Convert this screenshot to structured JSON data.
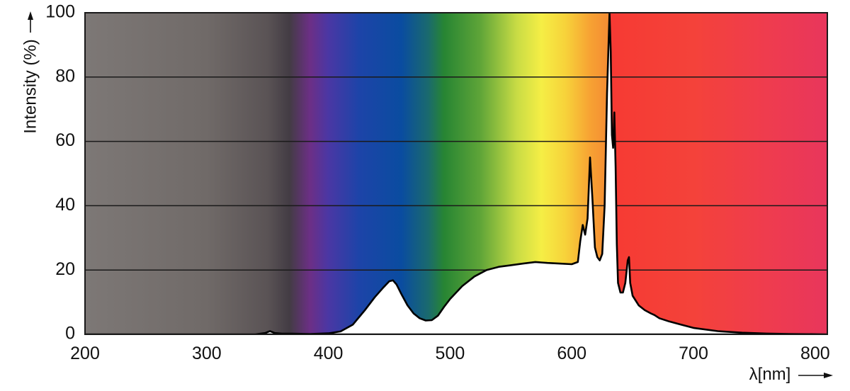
{
  "chart_data": {
    "type": "area",
    "ylabel": "Intensity (%)",
    "xlabel": "λ[nm]",
    "xlim": [
      200,
      810
    ],
    "ylim": [
      0,
      100
    ],
    "xticks": [
      200,
      300,
      400,
      500,
      600,
      700,
      800
    ],
    "yticks": [
      0,
      20,
      40,
      60,
      80,
      100
    ],
    "grid": "horizontal",
    "series": [
      {
        "x": [
          200,
          340,
          348,
          352,
          356,
          362,
          370,
          385,
          400,
          410,
          420,
          430,
          438,
          445,
          450,
          453,
          456,
          460,
          465,
          470,
          475,
          480,
          485,
          490,
          495,
          500,
          510,
          520,
          530,
          540,
          550,
          560,
          570,
          580,
          590,
          600,
          605,
          607,
          609,
          611,
          613,
          615,
          617,
          619,
          621,
          623,
          625,
          627,
          629,
          631,
          632,
          633,
          634,
          635,
          636,
          637,
          638,
          640,
          642,
          644,
          646,
          647,
          648,
          650,
          655,
          660,
          665,
          668,
          672,
          680,
          690,
          700,
          720,
          740,
          760,
          780,
          800,
          810
        ],
        "y": [
          0,
          0,
          0.4,
          1,
          0.4,
          0.2,
          0.2,
          0.1,
          0.3,
          0.9,
          3,
          7.5,
          11.5,
          14.5,
          16.5,
          16.8,
          15.5,
          12.5,
          9,
          6.5,
          5,
          4.3,
          4.4,
          5.8,
          8.5,
          11,
          15,
          18,
          20,
          21,
          21.5,
          22,
          22.5,
          22.2,
          22,
          21.8,
          22.5,
          29,
          34,
          31,
          36,
          55,
          42,
          27,
          24,
          23,
          25,
          40,
          75,
          100,
          88,
          62,
          58,
          69,
          52,
          28,
          16,
          13,
          13,
          16,
          23,
          24,
          16,
          12,
          9,
          7.5,
          6.5,
          6,
          5,
          4,
          3,
          2,
          1,
          0.5,
          0.25,
          0.1,
          0.05,
          0
        ]
      }
    ],
    "background_gradient": [
      {
        "nm": 200,
        "color": "#7d7876"
      },
      {
        "nm": 300,
        "color": "#706a68"
      },
      {
        "nm": 350,
        "color": "#5a5355"
      },
      {
        "nm": 368,
        "color": "#433c44"
      },
      {
        "nm": 385,
        "color": "#6c2f86"
      },
      {
        "nm": 400,
        "color": "#4a37a4"
      },
      {
        "nm": 425,
        "color": "#1d44a8"
      },
      {
        "nm": 460,
        "color": "#0a4ca0"
      },
      {
        "nm": 482,
        "color": "#1a6a6e"
      },
      {
        "nm": 495,
        "color": "#278533"
      },
      {
        "nm": 525,
        "color": "#5fa538"
      },
      {
        "nm": 555,
        "color": "#c9dc45"
      },
      {
        "nm": 575,
        "color": "#f5ee45"
      },
      {
        "nm": 595,
        "color": "#f7d23a"
      },
      {
        "nm": 615,
        "color": "#f7a233"
      },
      {
        "nm": 630,
        "color": "#f48c33"
      },
      {
        "nm": 631,
        "color": "#f63a33"
      },
      {
        "nm": 700,
        "color": "#f4423a"
      },
      {
        "nm": 760,
        "color": "#ef3c4e"
      },
      {
        "nm": 810,
        "color": "#e8365c"
      }
    ],
    "colors": {
      "grid": "#1a1a1a",
      "curve_fill": "#ffffff",
      "curve_stroke": "#000000",
      "text": "#111111"
    }
  }
}
